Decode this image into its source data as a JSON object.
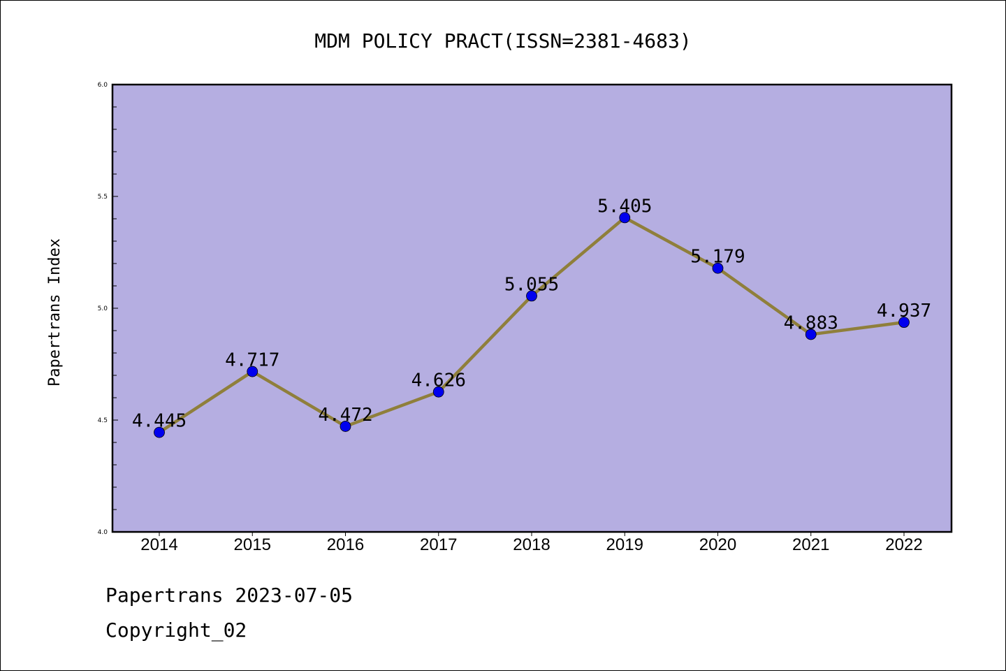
{
  "chart_data": {
    "type": "line",
    "title": "MDM POLICY PRACT(ISSN=2381-4683)",
    "xlabel": "",
    "ylabel": "Papertrans Index",
    "categories": [
      "2014",
      "2015",
      "2016",
      "2017",
      "2018",
      "2019",
      "2020",
      "2021",
      "2022"
    ],
    "values": [
      4.445,
      4.717,
      4.472,
      4.626,
      5.055,
      5.405,
      5.179,
      4.883,
      4.937
    ],
    "data_labels": [
      "4.445",
      "4.717",
      "4.472",
      "4.626",
      "5.055",
      "5.405",
      "5.179",
      "4.883",
      "4.937"
    ],
    "ylim": [
      4.0,
      6.0
    ],
    "yticks": [
      4.0,
      4.5,
      5.0,
      5.5,
      6.0
    ],
    "ytick_labels": [
      "4.0",
      "4.5",
      "5.0",
      "5.5",
      "6.0"
    ],
    "grid": false,
    "legend": "none",
    "colors": {
      "plot_background": "#b5aee1",
      "line": "#8f7f3b",
      "marker": "#0000ee"
    }
  },
  "footer": {
    "line1": "Papertrans 2023-07-05",
    "line2": "Copyright_02"
  }
}
